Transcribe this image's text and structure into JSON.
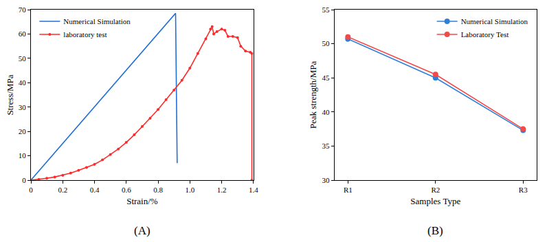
{
  "chart_data": [
    {
      "type": "line",
      "title": "(A)",
      "x_label": "Strain/%",
      "y_label": "Stress/MPa",
      "xlim": [
        0,
        1.4
      ],
      "xticks": [
        0,
        {
          "value": 0.2,
          "label": "0.2"
        },
        {
          "value": 0.4,
          "label": "0.4"
        },
        {
          "value": 0.6,
          "label": "0.6"
        },
        {
          "value": 0.8,
          "label": "0.8"
        },
        {
          "value": 1.0,
          "label": "1.0"
        },
        {
          "value": 1.2,
          "label": "1.2"
        },
        {
          "value": 1.4,
          "label": "1.4"
        }
      ],
      "ylim": [
        0,
        70
      ],
      "yticks": [
        0,
        10,
        20,
        30,
        40,
        50,
        60,
        70
      ],
      "legend": "upper left",
      "grid": false,
      "series": [
        {
          "name": "Numerical Simulation",
          "color": "#1f6fd6",
          "marker": "none",
          "x": [
            0,
            0.91,
            0.92
          ],
          "values": [
            0,
            68.5,
            7
          ]
        },
        {
          "name": "laboratory test",
          "color": "#ff2a2a",
          "marker": "circle",
          "x": [
            0,
            0.05,
            0.1,
            0.15,
            0.2,
            0.25,
            0.3,
            0.35,
            0.4,
            0.45,
            0.5,
            0.55,
            0.6,
            0.65,
            0.7,
            0.75,
            0.8,
            0.85,
            0.9,
            0.95,
            1.0,
            1.05,
            1.1,
            1.13,
            1.14,
            1.15,
            1.17,
            1.2,
            1.22,
            1.24,
            1.27,
            1.3,
            1.32,
            1.35,
            1.38,
            1.39,
            1.39
          ],
          "values": [
            0,
            0.3,
            0.8,
            1.3,
            2,
            2.9,
            4,
            5.2,
            6.5,
            8.3,
            10.5,
            12.8,
            15.5,
            18.6,
            22,
            25.4,
            29,
            33,
            37,
            41,
            46,
            52,
            58,
            62,
            63,
            60,
            61,
            62,
            61.5,
            59,
            59,
            58.5,
            55,
            53,
            52.5,
            52,
            0
          ]
        }
      ]
    },
    {
      "type": "line",
      "title": "(B)",
      "x_label": "Samples Type",
      "y_label": "Peak strength/MPa",
      "categories": [
        "R1",
        "R2",
        "R3"
      ],
      "ylim": [
        30,
        55
      ],
      "yticks": [
        30,
        35,
        40,
        45,
        50,
        55
      ],
      "legend": "upper right",
      "grid": false,
      "series": [
        {
          "name": "Numerical Simulation",
          "color": "#2f7fd8",
          "marker": "circle",
          "values": [
            50.7,
            45.0,
            37.3
          ]
        },
        {
          "name": "Laboratory Test",
          "color": "#f04a4a",
          "marker": "circle",
          "values": [
            51.0,
            45.5,
            37.5
          ]
        }
      ]
    }
  ]
}
